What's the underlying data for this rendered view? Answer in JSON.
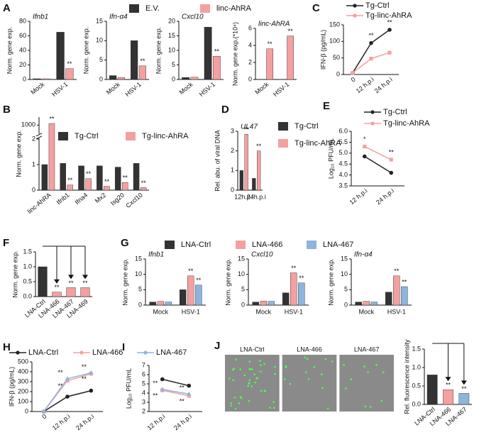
{
  "chart_data": [
    {
      "type": "bar",
      "panel": "A",
      "title": "Ifnb1",
      "y_label": "Norm. gene exp.",
      "categories": [
        "Mock",
        "HSV-1"
      ],
      "ylim": [
        0,
        80
      ],
      "yticks": [
        0,
        20,
        40,
        60,
        80
      ],
      "series": [
        {
          "name": "E.V.",
          "color": "#333333",
          "values": [
            1,
            65
          ]
        },
        {
          "name": "linc-AhRA",
          "color": "#f4a0a0",
          "values": [
            1,
            15
          ],
          "significance": [
            null,
            "**"
          ]
        }
      ]
    },
    {
      "type": "bar",
      "title": "Ifn-α4",
      "y_label": "Norm. gene exp.",
      "categories": [
        "Mock",
        "HSV-1"
      ],
      "ylim": [
        0,
        15
      ],
      "yticks": [
        0,
        5,
        10,
        15
      ],
      "series": [
        {
          "color": "#333333",
          "values": [
            1,
            10
          ]
        },
        {
          "color": "#f4a0a0",
          "values": [
            0.5,
            3.5
          ],
          "significance": [
            null,
            "**"
          ]
        }
      ]
    },
    {
      "type": "bar",
      "title": "Cxcl10",
      "y_label": "Norm. gene exp.",
      "categories": [
        "Mock",
        "HSV-1"
      ],
      "ylim": [
        0,
        20
      ],
      "yticks": [
        0,
        5,
        10,
        15,
        20
      ],
      "series": [
        {
          "color": "#333333",
          "values": [
            0.7,
            18
          ]
        },
        {
          "color": "#f4a0a0",
          "values": [
            0.8,
            8
          ],
          "significance": [
            null,
            "**"
          ]
        }
      ]
    },
    {
      "type": "bar",
      "title": "linc-AhRA",
      "y_label": "Norm. gene exp.(*10⁴)",
      "categories": [
        "Mock",
        "HSV-1"
      ],
      "ylim": [
        0,
        6
      ],
      "yticks": [
        0,
        2,
        4,
        6
      ],
      "series": [
        {
          "color": "#333333",
          "values": [
            0.02,
            0.02
          ]
        },
        {
          "color": "#f4a0a0",
          "values": [
            3.6,
            5.1
          ],
          "significance": [
            "**",
            "**"
          ]
        }
      ]
    },
    {
      "type": "line",
      "panel": "C",
      "y_label": "IFN-β (pg/mL)",
      "categories": [
        "0",
        "12 h.p.i",
        "24 h.p.i"
      ],
      "ylim": [
        0,
        150
      ],
      "yticks": [
        0,
        50,
        100,
        150
      ],
      "series": [
        {
          "name": "Tg-Ctrl",
          "color": "#222222",
          "values": [
            5,
            95,
            135
          ]
        },
        {
          "name": "Tg-linc-AhRA",
          "color": "#f4a0a0",
          "values": [
            5,
            48,
            66
          ],
          "significance": [
            null,
            "**",
            "**"
          ]
        }
      ]
    },
    {
      "type": "bar",
      "panel": "B",
      "y_label": "Norm. gene exp.",
      "categories": [
        "linc-AhRA",
        "Ifnb1",
        "Ifna4",
        "Mx2",
        "Isg20",
        "Cxcl10"
      ],
      "ylim": [
        0,
        1500
      ],
      "axis_break": [
        2,
        500
      ],
      "yticks": [
        0,
        1,
        2,
        1000
      ],
      "series": [
        {
          "name": "Tg-Ctrl",
          "color": "#333333",
          "values": [
            1,
            1.05,
            0.95,
            0.95,
            0.9,
            1.05
          ]
        },
        {
          "name": "Tg-linc-AhRA",
          "color": "#f4a0a0",
          "values": [
            1100,
            0.2,
            0.45,
            0.15,
            0.3,
            0.1
          ],
          "significance": [
            "**",
            "**",
            "**",
            "**",
            "**",
            "**"
          ]
        }
      ]
    },
    {
      "type": "bar",
      "panel": "D",
      "title": "UL47",
      "y_label": "Rel. abu. of viral DNA",
      "categories": [
        "12h.p.i",
        "24h.p.i"
      ],
      "ylim": [
        0,
        3
      ],
      "yticks": [
        0,
        1,
        2,
        3
      ],
      "series": [
        {
          "name": "Tg-Ctrl",
          "color": "#333333",
          "values": [
            1.0,
            0.6
          ]
        },
        {
          "name": "Tg-linc-AhRA",
          "color": "#f4a0a0",
          "values": [
            2.85,
            2.0
          ],
          "significance": [
            "**",
            "**"
          ]
        }
      ]
    },
    {
      "type": "line",
      "panel": "E",
      "y_label": "Log₁₀ PFU/mL",
      "categories": [
        "12 h.p.i",
        "24 h.p.i"
      ],
      "ylim": [
        3.5,
        6.0
      ],
      "yticks": [
        3.5,
        {
          "value": 4,
          "label": "4.0"
        },
        4.5,
        {
          "value": 5,
          "label": "5.0"
        },
        5.5,
        {
          "value": 6,
          "label": "6.0"
        }
      ],
      "series": [
        {
          "name": "Tg-Ctrl",
          "color": "#222222",
          "values": [
            4.85,
            4.1
          ]
        },
        {
          "name": "Tg-linc-AhRA",
          "color": "#f4a0a0",
          "values": [
            5.3,
            4.7
          ],
          "significance": [
            "*",
            "**"
          ]
        }
      ]
    },
    {
      "type": "bar",
      "panel": "F",
      "y_label": "Norm. gene exp.",
      "categories": [
        "LNA-Ctrl",
        "LNA-466",
        "LNA-467",
        "LNA-469"
      ],
      "ylim": [
        0,
        1.5
      ],
      "yticks": [
        {
          "value": 0,
          "label": "0.0"
        },
        0.5,
        {
          "value": 1,
          "label": "1.0"
        },
        1.5
      ],
      "values": [
        1.0,
        0.15,
        0.3,
        0.3
      ],
      "colors": [
        "#333333",
        "#f4a0a0",
        "#f4a0a0",
        "#f4a0a0"
      ],
      "significance": [
        null,
        "**",
        "**",
        "**"
      ]
    },
    {
      "type": "bar",
      "panel": "G",
      "title": "Ifnb1",
      "y_label": "Norm. gene exp.",
      "categories": [
        "Mock",
        "HSV-1"
      ],
      "ylim": [
        0,
        15
      ],
      "yticks": [
        0,
        5,
        10,
        15
      ],
      "series": [
        {
          "name": "LNA-Ctrl",
          "color": "#333333",
          "values": [
            1,
            5
          ]
        },
        {
          "name": "LNA-466",
          "color": "#f4a0a0",
          "values": [
            1.2,
            9.5
          ],
          "significance": [
            null,
            "**"
          ]
        },
        {
          "name": "LNA-467",
          "color": "#8db4dd",
          "values": [
            1,
            6.5
          ],
          "significance": [
            null,
            "**"
          ]
        }
      ]
    },
    {
      "type": "bar",
      "title": "Cxcl10",
      "y_label": "Norm. gene exp.",
      "categories": [
        "Mock",
        "HSV-1"
      ],
      "ylim": [
        0,
        15
      ],
      "yticks": [
        0,
        5,
        10,
        15
      ],
      "series": [
        {
          "color": "#333333",
          "values": [
            1,
            4
          ]
        },
        {
          "color": "#f4a0a0",
          "values": [
            1.3,
            10.5
          ],
          "significance": [
            null,
            "**"
          ]
        },
        {
          "color": "#8db4dd",
          "values": [
            1.2,
            7.2
          ],
          "significance": [
            null,
            "**"
          ]
        }
      ]
    },
    {
      "type": "bar",
      "title": "Ifn-α4",
      "y_label": "Norm. gene exp.",
      "categories": [
        "Mock",
        "HSV-1"
      ],
      "ylim": [
        0,
        15
      ],
      "yticks": [
        0,
        5,
        10,
        15
      ],
      "series": [
        {
          "color": "#333333",
          "values": [
            1,
            4.2
          ]
        },
        {
          "color": "#f4a0a0",
          "values": [
            1.2,
            9.5
          ],
          "significance": [
            null,
            "**"
          ]
        },
        {
          "color": "#8db4dd",
          "values": [
            1,
            6
          ],
          "significance": [
            null,
            "**"
          ]
        }
      ]
    },
    {
      "type": "line",
      "panel": "H",
      "y_label": "IFN-β (pg/mL)",
      "categories": [
        "0",
        "12 h.p.i",
        "24 h.p.i"
      ],
      "ylim": [
        0,
        500
      ],
      "yticks": [
        0,
        100,
        200,
        300,
        400,
        500
      ],
      "series": [
        {
          "name": "LNA-Ctrl",
          "color": "#222222",
          "values": [
            0,
            150,
            210
          ]
        },
        {
          "name": "LNA-466",
          "color": "#f4a0a0",
          "values": [
            0,
            310,
            380
          ],
          "significance": [
            null,
            "**",
            "**"
          ]
        },
        {
          "name": "LNA-467",
          "color": "#8db4dd",
          "values": [
            0,
            330,
            390
          ],
          "significance": [
            null,
            "**",
            "**"
          ]
        }
      ]
    },
    {
      "type": "line",
      "panel": "I",
      "y_label": "Log₁₀ PFU/mL",
      "categories": [
        "12 h.p.i",
        "24 h.p.i"
      ],
      "ylim": [
        2,
        7
      ],
      "yticks": [
        2,
        3,
        4,
        5,
        6,
        7
      ],
      "series": [
        {
          "color": "#222222",
          "values": [
            5.5,
            4.8
          ]
        },
        {
          "color": "#f4a0a0",
          "values": [
            4.3,
            3.7
          ],
          "significance": [
            "**",
            "**"
          ]
        },
        {
          "color": "#8db4dd",
          "values": [
            4.4,
            3.9
          ],
          "significance": [
            "**",
            "**"
          ]
        }
      ]
    },
    {
      "type": "image",
      "panel": "J",
      "labels": [
        "LNA-Ctrl",
        "LNA-466",
        "LNA-467"
      ]
    },
    {
      "type": "bar",
      "y_label": "Rel. fluorescence intensity",
      "categories": [
        "LNA-Ctrl",
        "LNA-466",
        "LNA-467"
      ],
      "ylim": [
        0,
        1.5
      ],
      "yticks": [
        {
          "value": 0,
          "label": "0.0"
        },
        0.5,
        {
          "value": 1,
          "label": "1.0"
        },
        1.5
      ],
      "values": [
        0.8,
        0.4,
        0.3
      ],
      "colors": [
        "#333333",
        "#f4a0a0",
        "#8db4dd"
      ],
      "significance": [
        null,
        "**",
        "**"
      ]
    }
  ]
}
